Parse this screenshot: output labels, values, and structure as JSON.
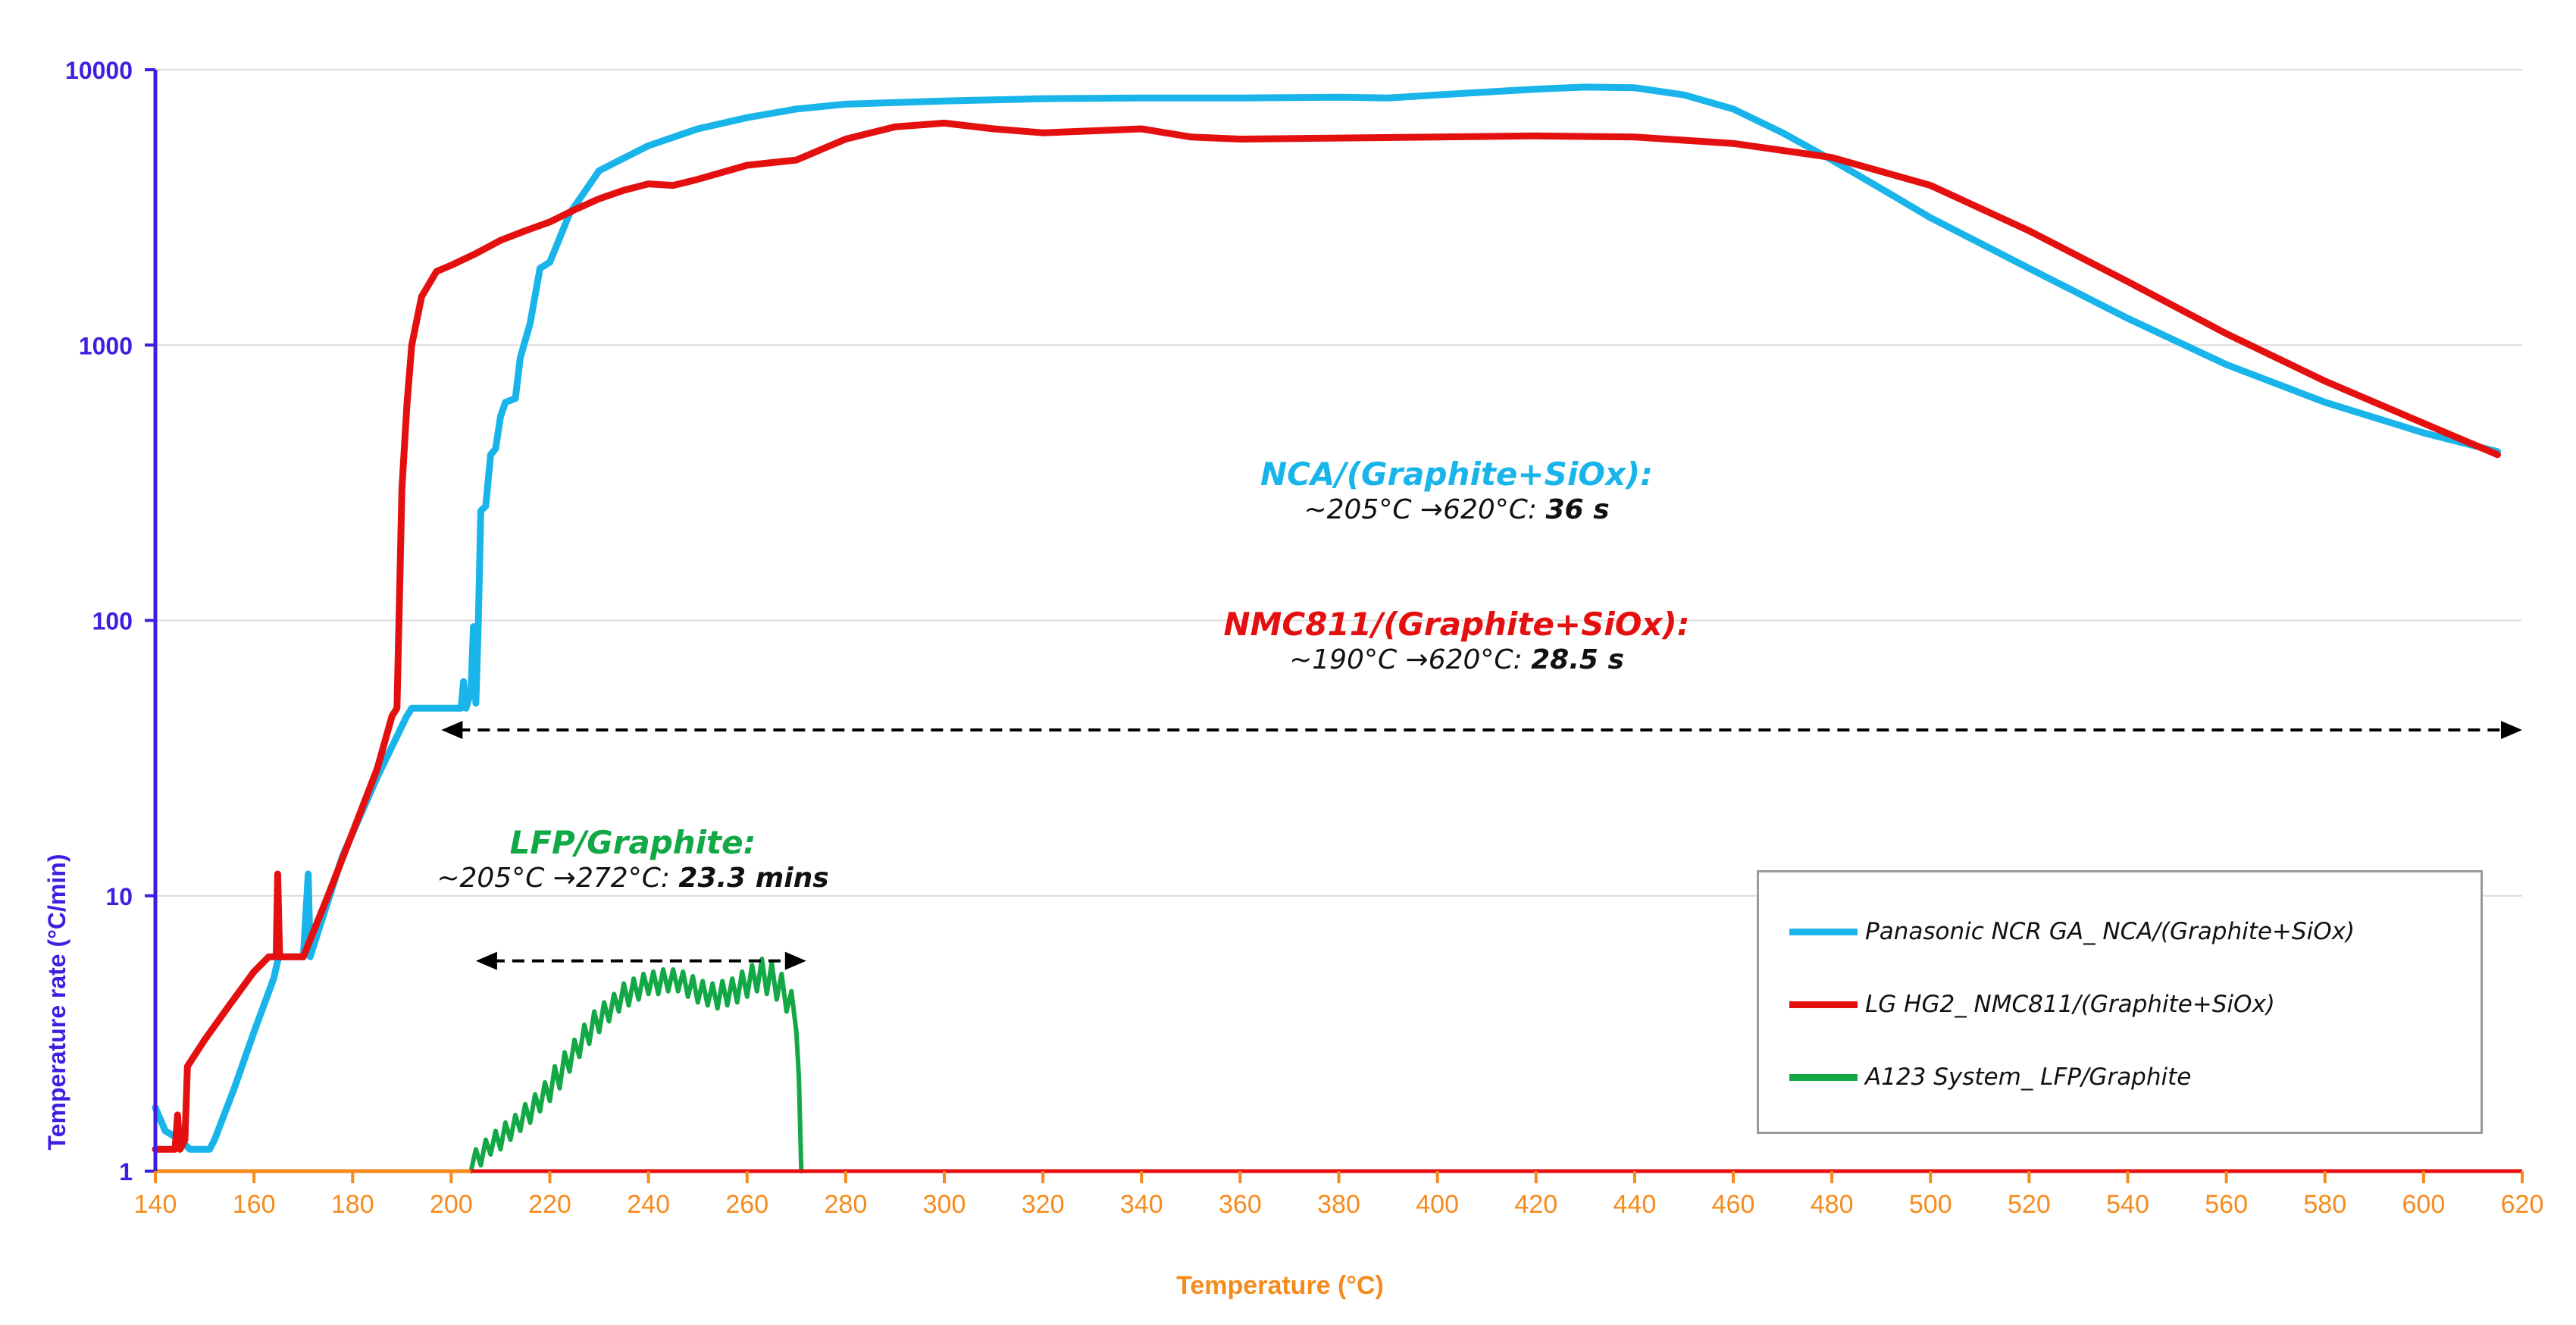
{
  "chart_data": {
    "type": "line",
    "xlabel": "Temperature (°C)",
    "ylabel": "Temperature rate (°C/min)",
    "xlim": [
      140,
      620
    ],
    "ylim": [
      1,
      10000
    ],
    "yscale": "log",
    "x_ticks": [
      "140",
      "160",
      "180",
      "200",
      "220",
      "240",
      "260",
      "280",
      "300",
      "320",
      "340",
      "360",
      "380",
      "400",
      "420",
      "440",
      "460",
      "480",
      "500",
      "520",
      "540",
      "560",
      "580",
      "600",
      "620"
    ],
    "y_ticks": [
      "1",
      "10",
      "100",
      "1000",
      "10000"
    ],
    "colors": {
      "x_axis": "#f58b1e",
      "y_axis": "#3d1fe0",
      "nca": "#19b4ea",
      "nmc": "#e41010",
      "lfp": "#13a846",
      "grid": "#dcdcdc"
    },
    "series": [
      {
        "name": "Panasonic NCR GA_ NCA/(Graphite+SiOx)",
        "key": "nca",
        "points": [
          [
            140,
            1.7
          ],
          [
            142,
            1.4
          ],
          [
            145,
            1.3
          ],
          [
            147,
            1.2
          ],
          [
            151,
            1.2
          ],
          [
            152,
            1.3
          ],
          [
            156,
            2
          ],
          [
            160,
            3.2
          ],
          [
            164,
            5
          ],
          [
            165,
            6
          ],
          [
            170,
            6
          ],
          [
            171,
            12
          ],
          [
            171.4,
            6
          ],
          [
            172,
            6.5
          ],
          [
            178,
            14
          ],
          [
            185,
            27
          ],
          [
            191,
            45
          ],
          [
            192,
            48
          ],
          [
            200,
            48
          ],
          [
            202,
            48
          ],
          [
            202.5,
            60
          ],
          [
            203,
            48
          ],
          [
            204,
            55
          ],
          [
            204.5,
            95
          ],
          [
            205,
            50
          ],
          [
            205.5,
            100
          ],
          [
            206,
            250
          ],
          [
            207,
            260
          ],
          [
            208,
            400
          ],
          [
            209,
            420
          ],
          [
            210,
            550
          ],
          [
            211,
            620
          ],
          [
            213,
            640
          ],
          [
            214,
            900
          ],
          [
            216,
            1200
          ],
          [
            218,
            1900
          ],
          [
            220,
            2000
          ],
          [
            224,
            3000
          ],
          [
            230,
            4300
          ],
          [
            240,
            5300
          ],
          [
            250,
            6100
          ],
          [
            260,
            6700
          ],
          [
            270,
            7200
          ],
          [
            280,
            7500
          ],
          [
            300,
            7700
          ],
          [
            320,
            7850
          ],
          [
            340,
            7900
          ],
          [
            360,
            7900
          ],
          [
            380,
            7950
          ],
          [
            390,
            7900
          ],
          [
            400,
            8100
          ],
          [
            410,
            8300
          ],
          [
            420,
            8500
          ],
          [
            430,
            8650
          ],
          [
            440,
            8600
          ],
          [
            450,
            8100
          ],
          [
            460,
            7200
          ],
          [
            470,
            5900
          ],
          [
            480,
            4700
          ],
          [
            490,
            3700
          ],
          [
            500,
            2900
          ],
          [
            520,
            1900
          ],
          [
            540,
            1250
          ],
          [
            560,
            850
          ],
          [
            580,
            620
          ],
          [
            600,
            480
          ],
          [
            615,
            410
          ]
        ]
      },
      {
        "name": "LG HG2_ NMC811/(Graphite+SiOx)",
        "key": "nmc",
        "points": [
          [
            140,
            1.2
          ],
          [
            144,
            1.2
          ],
          [
            144.5,
            1.6
          ],
          [
            145,
            1.2
          ],
          [
            146,
            1.3
          ],
          [
            146.5,
            2.4
          ],
          [
            150,
            3
          ],
          [
            155,
            4
          ],
          [
            160,
            5.3
          ],
          [
            163,
            6
          ],
          [
            164.5,
            6
          ],
          [
            164.8,
            12
          ],
          [
            165.2,
            6
          ],
          [
            170,
            6
          ],
          [
            175,
            10
          ],
          [
            180,
            17
          ],
          [
            185,
            29
          ],
          [
            188,
            45
          ],
          [
            189,
            48
          ],
          [
            189.5,
            120
          ],
          [
            190,
            300
          ],
          [
            191,
            600
          ],
          [
            192,
            1000
          ],
          [
            194,
            1500
          ],
          [
            197,
            1850
          ],
          [
            200,
            1950
          ],
          [
            205,
            2150
          ],
          [
            210,
            2400
          ],
          [
            215,
            2600
          ],
          [
            220,
            2800
          ],
          [
            225,
            3100
          ],
          [
            230,
            3400
          ],
          [
            235,
            3650
          ],
          [
            240,
            3850
          ],
          [
            245,
            3800
          ],
          [
            250,
            4000
          ],
          [
            260,
            4500
          ],
          [
            270,
            4700
          ],
          [
            280,
            5600
          ],
          [
            290,
            6200
          ],
          [
            300,
            6400
          ],
          [
            310,
            6100
          ],
          [
            320,
            5900
          ],
          [
            330,
            6000
          ],
          [
            340,
            6100
          ],
          [
            350,
            5700
          ],
          [
            360,
            5600
          ],
          [
            380,
            5650
          ],
          [
            400,
            5700
          ],
          [
            420,
            5750
          ],
          [
            440,
            5700
          ],
          [
            460,
            5400
          ],
          [
            480,
            4800
          ],
          [
            500,
            3800
          ],
          [
            520,
            2600
          ],
          [
            540,
            1700
          ],
          [
            560,
            1100
          ],
          [
            580,
            740
          ],
          [
            600,
            520
          ],
          [
            615,
            400
          ]
        ]
      },
      {
        "name": "A123 System_ LFP/Graphite",
        "key": "lfp",
        "points": [
          [
            204,
            1.0
          ],
          [
            205,
            1.2
          ],
          [
            206,
            1.05
          ],
          [
            207,
            1.3
          ],
          [
            208,
            1.15
          ],
          [
            209,
            1.4
          ],
          [
            210,
            1.2
          ],
          [
            211,
            1.5
          ],
          [
            212,
            1.3
          ],
          [
            213,
            1.6
          ],
          [
            214,
            1.4
          ],
          [
            215,
            1.75
          ],
          [
            216,
            1.5
          ],
          [
            217,
            1.9
          ],
          [
            218,
            1.65
          ],
          [
            219,
            2.1
          ],
          [
            220,
            1.8
          ],
          [
            221,
            2.4
          ],
          [
            222,
            2.0
          ],
          [
            223,
            2.7
          ],
          [
            224,
            2.3
          ],
          [
            225,
            3.0
          ],
          [
            226,
            2.6
          ],
          [
            227,
            3.4
          ],
          [
            228,
            2.9
          ],
          [
            229,
            3.8
          ],
          [
            230,
            3.2
          ],
          [
            231,
            4.1
          ],
          [
            232,
            3.5
          ],
          [
            233,
            4.4
          ],
          [
            234,
            3.8
          ],
          [
            235,
            4.8
          ],
          [
            236,
            4.0
          ],
          [
            237,
            5.0
          ],
          [
            238,
            4.2
          ],
          [
            239,
            5.2
          ],
          [
            240,
            4.4
          ],
          [
            241,
            5.3
          ],
          [
            242,
            4.4
          ],
          [
            243,
            5.4
          ],
          [
            244,
            4.5
          ],
          [
            245,
            5.4
          ],
          [
            246,
            4.5
          ],
          [
            247,
            5.3
          ],
          [
            248,
            4.3
          ],
          [
            249,
            5.1
          ],
          [
            250,
            4.1
          ],
          [
            251,
            4.9
          ],
          [
            252,
            4.0
          ],
          [
            253,
            4.8
          ],
          [
            254,
            3.9
          ],
          [
            255,
            4.9
          ],
          [
            256,
            4.0
          ],
          [
            257,
            5.0
          ],
          [
            258,
            4.1
          ],
          [
            259,
            5.3
          ],
          [
            260,
            4.3
          ],
          [
            261,
            5.6
          ],
          [
            262,
            4.5
          ],
          [
            263,
            5.9
          ],
          [
            264,
            4.4
          ],
          [
            265,
            5.7
          ],
          [
            266,
            4.2
          ],
          [
            267,
            5.2
          ],
          [
            268,
            3.8
          ],
          [
            269,
            4.5
          ],
          [
            270,
            3.2
          ],
          [
            270.5,
            2.2
          ],
          [
            271,
            1.0
          ]
        ]
      }
    ],
    "baseline": {
      "x_range": [
        140,
        620
      ],
      "segments": [
        {
          "key": "x_axis",
          "from": 140,
          "to": 204
        },
        {
          "key": "nmc",
          "from": 204,
          "to": 620
        }
      ]
    },
    "annotations": [
      {
        "key": "nca",
        "title": "NCA/(Graphite+SiOx):",
        "detail_prefix": "~205°C ",
        "arrow": "→",
        "detail_mid": "620°C: ",
        "detail_value": "36 s"
      },
      {
        "key": "nmc",
        "title": "NMC811/(Graphite+SiOx):",
        "detail_prefix": "~190°C ",
        "arrow": "→",
        "detail_mid": "620°C: ",
        "detail_value": "28.5 s"
      },
      {
        "key": "lfp",
        "title": "LFP/Graphite:",
        "detail_prefix": "~205°C ",
        "arrow": "→",
        "detail_mid": "272°C: ",
        "detail_value": "23.3 mins"
      }
    ],
    "ranges": [
      {
        "name": "nca-nmc-range",
        "from": 198,
        "to": 620,
        "y": 40
      },
      {
        "name": "lfp-range",
        "from": 205,
        "to": 272,
        "y": 5.8
      }
    ],
    "legend": {
      "position": "bottom-right",
      "items": [
        {
          "key": "nca",
          "label": "Panasonic NCR GA_ NCA/(Graphite+SiOx)"
        },
        {
          "key": "nmc",
          "label": "LG HG2_ NMC811/(Graphite+SiOx)"
        },
        {
          "key": "lfp",
          "label": "A123 System_ LFP/Graphite"
        }
      ]
    }
  }
}
